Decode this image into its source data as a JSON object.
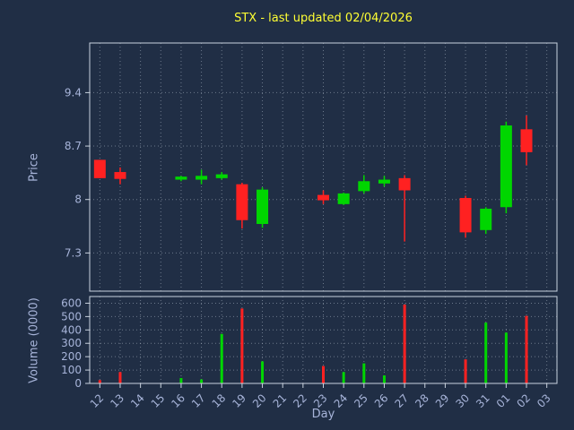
{
  "colors": {
    "background": "#202e45",
    "up": "#00d600",
    "down": "#ff2121",
    "title": "#ffff33",
    "label": "#a7b4d9",
    "grid": "#b7c3d1",
    "spine": "#c9d2de"
  },
  "chart_data": {
    "type": "candlestick",
    "title": "STX - last updated 02/04/2026",
    "xlabel": "Day",
    "price_axis": {
      "label": "Price",
      "ticks": [
        7.3,
        8,
        8.7,
        9.4
      ],
      "ylim": [
        6.8,
        10.05
      ]
    },
    "volume_axis": {
      "label": "Volume (0000)",
      "ticks": [
        0,
        100,
        200,
        300,
        400,
        500,
        600
      ],
      "ylim": [
        0,
        650
      ]
    },
    "days": [
      "12",
      "13",
      "14",
      "15",
      "16",
      "17",
      "18",
      "19",
      "20",
      "21",
      "22",
      "23",
      "24",
      "25",
      "26",
      "27",
      "28",
      "29",
      "30",
      "31",
      "01",
      "02",
      "03"
    ],
    "candles": [
      {
        "day": "12",
        "open": 8.52,
        "high": 8.52,
        "low": 8.28,
        "close": 8.28,
        "volume": 25
      },
      {
        "day": "13",
        "open": 8.36,
        "high": 8.42,
        "low": 8.2,
        "close": 8.27,
        "volume": 85
      },
      {
        "day": "16",
        "open": 8.26,
        "high": 8.31,
        "low": 8.24,
        "close": 8.3,
        "volume": 40
      },
      {
        "day": "17",
        "open": 8.26,
        "high": 8.39,
        "low": 8.2,
        "close": 8.31,
        "volume": 30
      },
      {
        "day": "18",
        "open": 8.28,
        "high": 8.36,
        "low": 8.26,
        "close": 8.33,
        "volume": 370
      },
      {
        "day": "19",
        "open": 8.2,
        "high": 8.22,
        "low": 7.62,
        "close": 7.73,
        "volume": 560
      },
      {
        "day": "20",
        "open": 7.68,
        "high": 8.16,
        "low": 7.63,
        "close": 8.13,
        "volume": 165
      },
      {
        "day": "23",
        "open": 8.06,
        "high": 8.12,
        "low": 7.94,
        "close": 7.99,
        "volume": 130
      },
      {
        "day": "24",
        "open": 7.94,
        "high": 8.09,
        "low": 7.93,
        "close": 8.08,
        "volume": 85
      },
      {
        "day": "25",
        "open": 8.11,
        "high": 8.32,
        "low": 8.08,
        "close": 8.24,
        "volume": 150
      },
      {
        "day": "26",
        "open": 8.21,
        "high": 8.31,
        "low": 8.17,
        "close": 8.26,
        "volume": 60
      },
      {
        "day": "27",
        "open": 8.28,
        "high": 8.32,
        "low": 7.45,
        "close": 8.12,
        "volume": 590
      },
      {
        "day": "30",
        "open": 8.02,
        "high": 8.05,
        "low": 7.5,
        "close": 7.57,
        "volume": 180
      },
      {
        "day": "31",
        "open": 7.6,
        "high": 7.9,
        "low": 7.55,
        "close": 7.88,
        "volume": 455
      },
      {
        "day": "01",
        "open": 7.9,
        "high": 9.02,
        "low": 7.82,
        "close": 8.97,
        "volume": 380
      },
      {
        "day": "02",
        "open": 8.92,
        "high": 9.1,
        "low": 8.45,
        "close": 8.62,
        "volume": 505
      }
    ]
  }
}
